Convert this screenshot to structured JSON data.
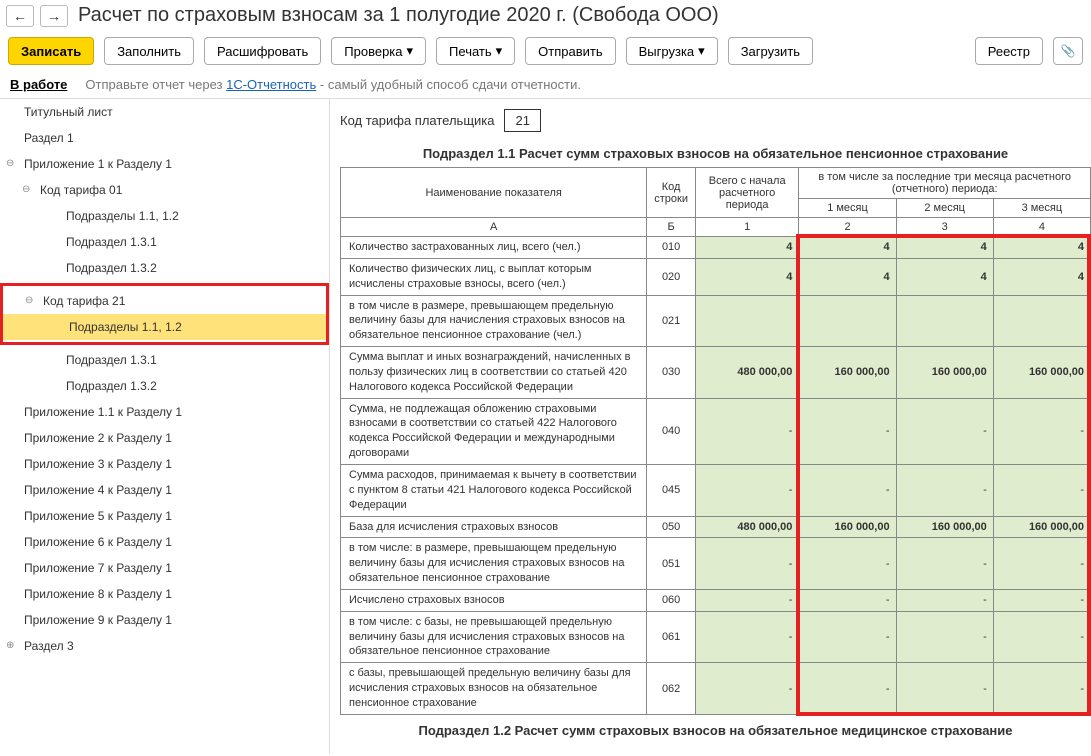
{
  "header": {
    "title": "Расчет по страховым взносам за 1 полугодие 2020 г. (Свобода ООО)"
  },
  "toolbar": {
    "save": "Записать",
    "fill": "Заполнить",
    "decode": "Расшифровать",
    "check": "Проверка",
    "print": "Печать",
    "send": "Отправить",
    "export": "Выгрузка",
    "load": "Загрузить",
    "registry": "Реестр"
  },
  "status": {
    "label": "В работе",
    "hint_before": "Отправьте отчет через ",
    "hint_link": "1С-Отчетность",
    "hint_after": " - самый удобный способ сдачи отчетности."
  },
  "tree": [
    {
      "label": "Титульный лист",
      "lv": 0
    },
    {
      "label": "Раздел 1",
      "lv": 0
    },
    {
      "label": "Приложение 1 к Разделу 1",
      "lv": 0,
      "exp": "⊖"
    },
    {
      "label": "Код тарифа 01",
      "lv": 1,
      "exp": "⊖"
    },
    {
      "label": "Подразделы 1.1, 1.2",
      "lv": 2
    },
    {
      "label": "Подраздел 1.3.1",
      "lv": 2
    },
    {
      "label": "Подраздел 1.3.2",
      "lv": 2
    },
    {
      "label": "Код тарифа 21",
      "lv": 1,
      "exp": "⊖",
      "redbox_start": true
    },
    {
      "label": "Подразделы 1.1, 1.2",
      "lv": 2,
      "sel": true,
      "redbox_end": true
    },
    {
      "label": "Подраздел 1.3.1",
      "lv": 2
    },
    {
      "label": "Подраздел 1.3.2",
      "lv": 2
    },
    {
      "label": "Приложение 1.1 к Разделу 1",
      "lv": 0
    },
    {
      "label": "Приложение 2 к Разделу 1",
      "lv": 0
    },
    {
      "label": "Приложение 3 к Разделу 1",
      "lv": 0
    },
    {
      "label": "Приложение 4 к Разделу 1",
      "lv": 0
    },
    {
      "label": "Приложение 5 к Разделу 1",
      "lv": 0
    },
    {
      "label": "Приложение 6 к Разделу 1",
      "lv": 0
    },
    {
      "label": "Приложение 7 к Разделу 1",
      "lv": 0
    },
    {
      "label": "Приложение 8 к Разделу 1",
      "lv": 0
    },
    {
      "label": "Приложение 9 к Разделу 1",
      "lv": 0
    },
    {
      "label": "Раздел 3",
      "lv": 0,
      "exp": "⊕"
    }
  ],
  "content": {
    "tariff_label": "Код тарифа плательщика",
    "tariff_code": "21",
    "section_title": "Подраздел 1.1 Расчет сумм страховых взносов на обязательное пенсионное страхование",
    "section_title2": "Подраздел 1.2 Расчет сумм страховых взносов на обязательное медицинское страхование",
    "th": {
      "name": "Наименование показателя",
      "code": "Код строки",
      "total": "Всего с начала расчетного периода",
      "last3": "в том числе за последние три месяца расчетного (отчетного) периода:",
      "m1": "1 месяц",
      "m2": "2 месяц",
      "m3": "3 месяц",
      "A": "А",
      "B": "Б",
      "c1": "1",
      "c2": "2",
      "c3": "3",
      "c4": "4"
    },
    "rows": [
      {
        "label": "Количество застрахованных лиц, всего (чел.)",
        "code": "010",
        "v": [
          "4",
          "4",
          "4",
          "4"
        ]
      },
      {
        "label": "Количество физических лиц, с выплат которым исчислены страховые взносы, всего (чел.)",
        "code": "020",
        "v": [
          "4",
          "4",
          "4",
          "4"
        ]
      },
      {
        "label": "в том числе в размере, превышающем предельную величину базы для начисления страховых взносов на обязательное пенсионное страхование (чел.)",
        "code": "021",
        "v": [
          "",
          "",
          "",
          ""
        ]
      },
      {
        "label": "Сумма выплат и иных вознаграждений, начисленных в пользу физических лиц в соответствии со статьей 420 Налогового кодекса Российской Федерации",
        "code": "030",
        "v": [
          "480 000,00",
          "160 000,00",
          "160 000,00",
          "160 000,00"
        ]
      },
      {
        "label": "Сумма, не подлежащая обложению страховыми взносами в соответствии со статьей 422 Налогового кодекса Российской Федерации и международными договорами",
        "code": "040",
        "v": [
          "-",
          "-",
          "-",
          "-"
        ]
      },
      {
        "label": "Сумма расходов, принимаемая к вычету в соответствии с пунктом 8 статьи 421 Налогового кодекса Российской Федерации",
        "code": "045",
        "v": [
          "-",
          "-",
          "-",
          "-"
        ]
      },
      {
        "label": "База для исчисления страховых взносов",
        "code": "050",
        "v": [
          "480 000,00",
          "160 000,00",
          "160 000,00",
          "160 000,00"
        ]
      },
      {
        "label": "в том числе:\nв размере, превышающем предельную величину базы для исчисления страховых взносов на обязательное пенсионное страхование",
        "code": "051",
        "v": [
          "-",
          "-",
          "-",
          "-"
        ]
      },
      {
        "label": "Исчислено страховых взносов",
        "code": "060",
        "v": [
          "-",
          "-",
          "-",
          "-"
        ]
      },
      {
        "label": "в том числе:\nс базы, не превышающей предельную величину базы для исчисления страховых взносов на обязательное пенсионное страхование",
        "code": "061",
        "v": [
          "-",
          "-",
          "-",
          "-"
        ]
      },
      {
        "label": "с базы, превышающей предельную величину базы для исчисления страховых взносов на обязательное пенсионное страхование",
        "code": "062",
        "v": [
          "-",
          "-",
          "-",
          "-"
        ]
      }
    ]
  },
  "colors": {
    "primary_yellow": "#ffd500",
    "highlight_yellow": "#ffe27a",
    "cell_green": "#e0ecce",
    "red": "#e62020"
  }
}
